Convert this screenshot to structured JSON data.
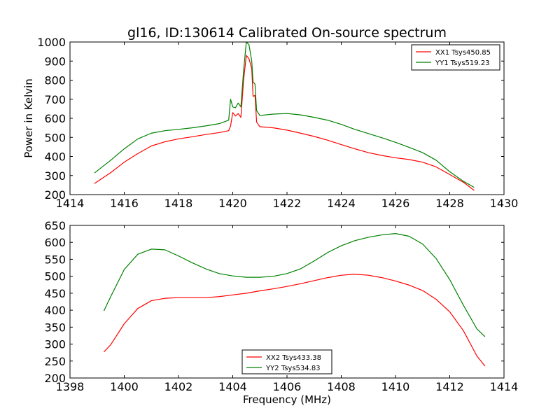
{
  "chart_data": [
    {
      "type": "line",
      "title": "gl16, ID:130614 Calibrated On-source spectrum",
      "xlabel": "",
      "ylabel": "Power in Kelvin",
      "xlim": [
        1414,
        1430
      ],
      "ylim": [
        200,
        1000
      ],
      "xticks": [
        1414,
        1416,
        1418,
        1420,
        1422,
        1424,
        1426,
        1428,
        1430
      ],
      "yticks": [
        200,
        300,
        400,
        500,
        600,
        700,
        800,
        900,
        1000
      ],
      "legend_position": "top-right",
      "series": [
        {
          "name": "XX1 Tsys450.85",
          "color": "#ff0000",
          "points": [
            [
              1414.9,
              258
            ],
            [
              1415.5,
              315
            ],
            [
              1416,
              370
            ],
            [
              1416.5,
              415
            ],
            [
              1417,
              455
            ],
            [
              1417.5,
              477
            ],
            [
              1418,
              492
            ],
            [
              1418.5,
              503
            ],
            [
              1419,
              515
            ],
            [
              1419.5,
              525
            ],
            [
              1419.85,
              535
            ],
            [
              1419.92,
              560
            ],
            [
              1420.0,
              630
            ],
            [
              1420.1,
              612
            ],
            [
              1420.2,
              625
            ],
            [
              1420.3,
              605
            ],
            [
              1420.4,
              800
            ],
            [
              1420.5,
              930
            ],
            [
              1420.6,
              912
            ],
            [
              1420.7,
              860
            ],
            [
              1420.75,
              715
            ],
            [
              1420.82,
              720
            ],
            [
              1420.88,
              580
            ],
            [
              1421,
              556
            ],
            [
              1421.5,
              550
            ],
            [
              1422,
              538
            ],
            [
              1422.5,
              522
            ],
            [
              1423,
              505
            ],
            [
              1423.5,
              485
            ],
            [
              1424,
              462
            ],
            [
              1424.5,
              440
            ],
            [
              1425,
              420
            ],
            [
              1425.5,
              405
            ],
            [
              1426,
              393
            ],
            [
              1426.5,
              384
            ],
            [
              1427,
              370
            ],
            [
              1427.5,
              345
            ],
            [
              1428,
              305
            ],
            [
              1428.5,
              265
            ],
            [
              1428.9,
              222
            ]
          ]
        },
        {
          "name": "YY1 Tsys519.23",
          "color": "#008000",
          "points": [
            [
              1414.9,
              313
            ],
            [
              1415.5,
              380
            ],
            [
              1416,
              440
            ],
            [
              1416.5,
              492
            ],
            [
              1417,
              522
            ],
            [
              1417.5,
              535
            ],
            [
              1418,
              542
            ],
            [
              1418.5,
              550
            ],
            [
              1419,
              560
            ],
            [
              1419.5,
              572
            ],
            [
              1419.85,
              590
            ],
            [
              1419.92,
              700
            ],
            [
              1420.0,
              660
            ],
            [
              1420.1,
              655
            ],
            [
              1420.2,
              680
            ],
            [
              1420.3,
              660
            ],
            [
              1420.4,
              850
            ],
            [
              1420.5,
              1000
            ],
            [
              1420.6,
              985
            ],
            [
              1420.7,
              900
            ],
            [
              1420.75,
              790
            ],
            [
              1420.82,
              780
            ],
            [
              1420.88,
              640
            ],
            [
              1421,
              615
            ],
            [
              1421.5,
              622
            ],
            [
              1422,
              625
            ],
            [
              1422.5,
              618
            ],
            [
              1423,
              605
            ],
            [
              1423.5,
              590
            ],
            [
              1424,
              568
            ],
            [
              1424.5,
              542
            ],
            [
              1425,
              520
            ],
            [
              1425.5,
              498
            ],
            [
              1426,
              474
            ],
            [
              1426.5,
              448
            ],
            [
              1427,
              420
            ],
            [
              1427.5,
              380
            ],
            [
              1428,
              320
            ],
            [
              1428.5,
              270
            ],
            [
              1428.9,
              238
            ]
          ]
        }
      ]
    },
    {
      "type": "line",
      "title": "",
      "xlabel": "Frequency (MHz)",
      "ylabel": "",
      "xlim": [
        1398,
        1414
      ],
      "ylim": [
        200,
        650
      ],
      "xticks": [
        1398,
        1400,
        1402,
        1404,
        1406,
        1408,
        1410,
        1412,
        1414
      ],
      "yticks": [
        200,
        250,
        300,
        350,
        400,
        450,
        500,
        550,
        600,
        650
      ],
      "legend_position": "bottom-center",
      "series": [
        {
          "name": "XX2 Tsys433.38",
          "color": "#ff0000",
          "points": [
            [
              1399.25,
              277
            ],
            [
              1399.5,
              298
            ],
            [
              1400,
              360
            ],
            [
              1400.5,
              405
            ],
            [
              1401,
              428
            ],
            [
              1401.5,
              435
            ],
            [
              1402,
              437
            ],
            [
              1402.5,
              437
            ],
            [
              1403,
              437
            ],
            [
              1403.5,
              440
            ],
            [
              1404,
              445
            ],
            [
              1404.5,
              450
            ],
            [
              1405,
              457
            ],
            [
              1405.5,
              463
            ],
            [
              1406,
              470
            ],
            [
              1406.5,
              478
            ],
            [
              1407,
              487
            ],
            [
              1407.5,
              496
            ],
            [
              1408,
              503
            ],
            [
              1408.5,
              506
            ],
            [
              1409,
              503
            ],
            [
              1409.5,
              496
            ],
            [
              1410,
              486
            ],
            [
              1410.5,
              474
            ],
            [
              1411,
              458
            ],
            [
              1411.5,
              432
            ],
            [
              1412,
              395
            ],
            [
              1412.5,
              340
            ],
            [
              1413,
              265
            ],
            [
              1413.3,
              235
            ]
          ]
        },
        {
          "name": "YY2 Tsys534.83",
          "color": "#008000",
          "points": [
            [
              1399.25,
              398
            ],
            [
              1399.5,
              440
            ],
            [
              1400,
              520
            ],
            [
              1400.5,
              565
            ],
            [
              1401,
              580
            ],
            [
              1401.5,
              578
            ],
            [
              1402,
              560
            ],
            [
              1402.5,
              540
            ],
            [
              1403,
              522
            ],
            [
              1403.5,
              508
            ],
            [
              1404,
              501
            ],
            [
              1404.5,
              497
            ],
            [
              1405,
              497
            ],
            [
              1405.5,
              500
            ],
            [
              1406,
              508
            ],
            [
              1406.5,
              522
            ],
            [
              1407,
              545
            ],
            [
              1407.5,
              570
            ],
            [
              1408,
              590
            ],
            [
              1408.5,
              605
            ],
            [
              1409,
              615
            ],
            [
              1409.5,
              622
            ],
            [
              1410,
              626
            ],
            [
              1410.5,
              618
            ],
            [
              1411,
              595
            ],
            [
              1411.5,
              552
            ],
            [
              1412,
              490
            ],
            [
              1412.5,
              415
            ],
            [
              1413,
              345
            ],
            [
              1413.3,
              322
            ]
          ]
        }
      ]
    }
  ]
}
